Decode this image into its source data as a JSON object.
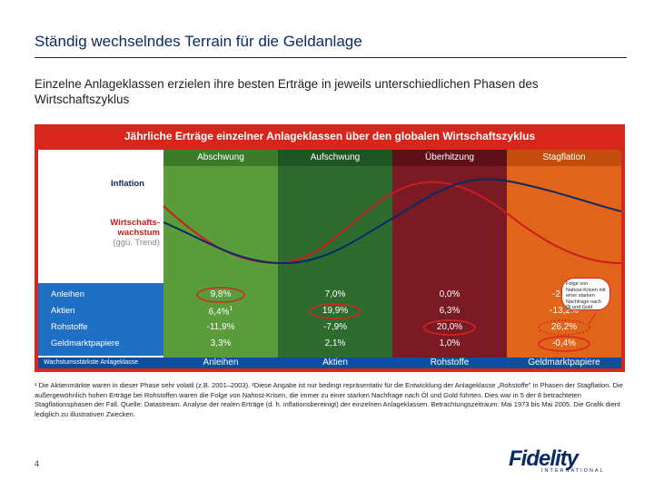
{
  "title": "Ständig wechselndes Terrain für die Geldanlage",
  "subtitle": "Einzelne Anlageklassen erzielen ihre besten Erträge in jeweils unterschiedlichen Phasen des Wirtschaftszyklus",
  "panel_title": "Jährliche Erträge einzelner Anlageklassen über den globalen Wirtschaftszyklus",
  "phases": [
    {
      "name": "Abschwung",
      "color": "#5a9b3c",
      "header_color": "#3d7a2a"
    },
    {
      "name": "Aufschwung",
      "color": "#2e6b2f",
      "header_color": "#1f5423"
    },
    {
      "name": "Überhitzung",
      "color": "#7a1a24",
      "header_color": "#5e1019"
    },
    {
      "name": "Stagflation",
      "color": "#e0651a",
      "header_color": "#c24d0d"
    }
  ],
  "labels": {
    "inflation": "Inflation",
    "growth_line1": "Wirtschafts-",
    "growth_line2": "wachstum",
    "growth_line3": "(ggü. Trend)",
    "best_class": "Wachstumsstärkste Anlageklasse"
  },
  "colors": {
    "inflation_line": "#0a2a66",
    "growth_line": "#c81e1e",
    "label_blue": "#0a2a66",
    "label_red": "#c81e1e",
    "asset_panel": "#1f6fc4",
    "best_row": "#0d4f9e",
    "highlight": "#d9261c"
  },
  "assets": [
    {
      "name": "Anleihen",
      "values": [
        "9,8%",
        "7,0%",
        "0,0%",
        "-2,1%"
      ]
    },
    {
      "name": "Aktien",
      "values": [
        "6,4%",
        "19,9%",
        "6,3%",
        "-13,2%"
      ]
    },
    {
      "name": "Rohstoffe",
      "values": [
        "-11,9%",
        "-7,9%",
        "20,0%",
        "26,2%"
      ]
    },
    {
      "name": "Geldmarktpapiere",
      "values": [
        "3,3%",
        "2,1%",
        "1,0%",
        "-0,4%"
      ]
    }
  ],
  "footnote_mark": "1",
  "best_assets": [
    "Anleihen",
    "Aktien",
    "Rohstoffe",
    "Geldmarktpapiere"
  ],
  "callout": "Folge von Nahost-Krisen mit einer starken Nachfrage nach Öl und Gold",
  "footnote": "¹ Die Aktienmärkte waren in dieser Phase sehr volatil (z.B. 2001–2003). ²Diese Angabe ist nur bedingt repräsentativ für die Entwicklung der Anlageklasse „Rohstoffe\" in Phasen der Stagflation. Die außergewöhnlich hohen Erträge bei Rohstoffen waren die Folge von Nahost-Krisen, die immer zu einer starken Nachfrage nach Öl und Gold führten. Dies war in 5 der 8 betrachteten Stagflationsphasen der Fall. Quelle: Datastream. Analyse der realen Erträge (d. h. inflationsbereinigt) der einzelnen Anlageklassen. Betrachtungszeitraum: Mai 1973 bis Mai 2005. Die Grafik dient lediglich zu illustrativen Zwecken.",
  "page_number": "4",
  "logo": {
    "name": "Fidelity",
    "tagline": "INTERNATIONAL"
  }
}
